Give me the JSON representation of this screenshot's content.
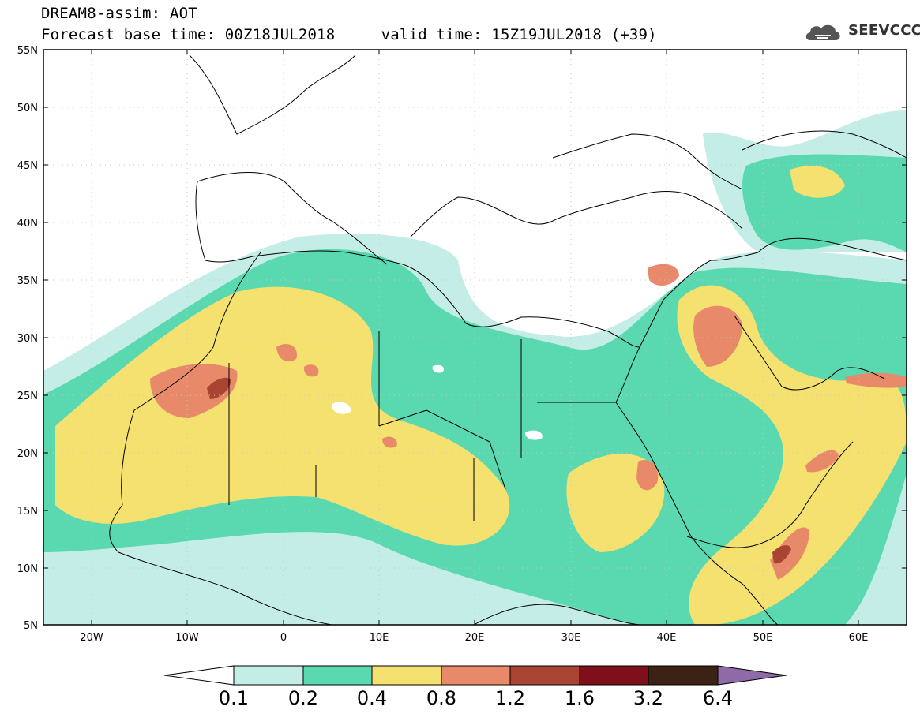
{
  "header": {
    "line1": "DREAM8-assim: AOT",
    "line2": "Forecast base time: 00Z18JUL2018     valid time: 15Z19JUL2018 (+39)",
    "logo_text": "SEEVCCC",
    "logo_icon": "cloud-icon"
  },
  "map": {
    "projection": "lat-lon",
    "lon_range": [
      -25,
      65
    ],
    "lat_range": [
      5,
      55
    ],
    "lat_labels": [
      "55N",
      "50N",
      "45N",
      "40N",
      "35N",
      "30N",
      "25N",
      "20N",
      "15N",
      "10N",
      "5N"
    ],
    "lon_labels": [
      "20W",
      "10W",
      "0",
      "10E",
      "20E",
      "30E",
      "40E",
      "50E",
      "60E"
    ],
    "grid": "dotted"
  },
  "legend": {
    "labels": [
      "0.1",
      "0.2",
      "0.4",
      "0.8",
      "1.2",
      "1.6",
      "3.2",
      "6.4"
    ],
    "colors": [
      "#ffffff",
      "#c3ede6",
      "#5ad9b0",
      "#f4e16f",
      "#e8896a",
      "#a94433",
      "#7e0f1b",
      "#3b2214",
      "#8e6aa6"
    ]
  }
}
